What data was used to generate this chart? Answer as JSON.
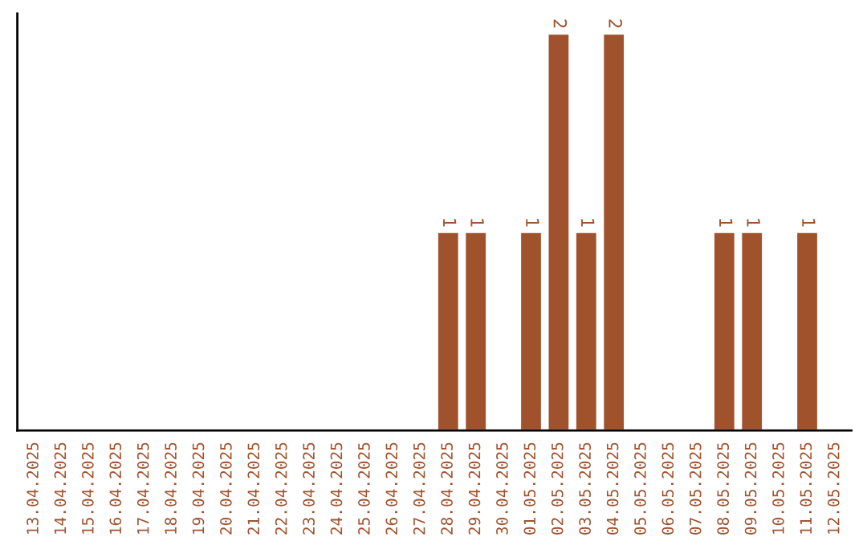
{
  "chart_data": {
    "type": "bar",
    "categories": [
      "13.04.2025",
      "14.04.2025",
      "15.04.2025",
      "16.04.2025",
      "17.04.2025",
      "18.04.2025",
      "19.04.2025",
      "20.04.2025",
      "21.04.2025",
      "22.04.2025",
      "23.04.2025",
      "24.04.2025",
      "25.04.2025",
      "26.04.2025",
      "27.04.2025",
      "28.04.2025",
      "29.04.2025",
      "30.04.2025",
      "01.05.2025",
      "02.05.2025",
      "03.05.2025",
      "04.05.2025",
      "05.05.2025",
      "06.05.2025",
      "07.05.2025",
      "08.05.2025",
      "09.05.2025",
      "10.05.2025",
      "11.05.2025",
      "12.05.2025"
    ],
    "values": [
      null,
      null,
      null,
      null,
      null,
      null,
      null,
      null,
      null,
      null,
      null,
      null,
      null,
      null,
      null,
      1,
      1,
      null,
      1,
      2,
      1,
      2,
      null,
      null,
      null,
      1,
      1,
      null,
      1,
      null
    ],
    "data_labels": true,
    "color": "#a0522d",
    "ylim": [
      0,
      2.1
    ],
    "tick_labels": "x",
    "grid": false,
    "legend": false
  }
}
